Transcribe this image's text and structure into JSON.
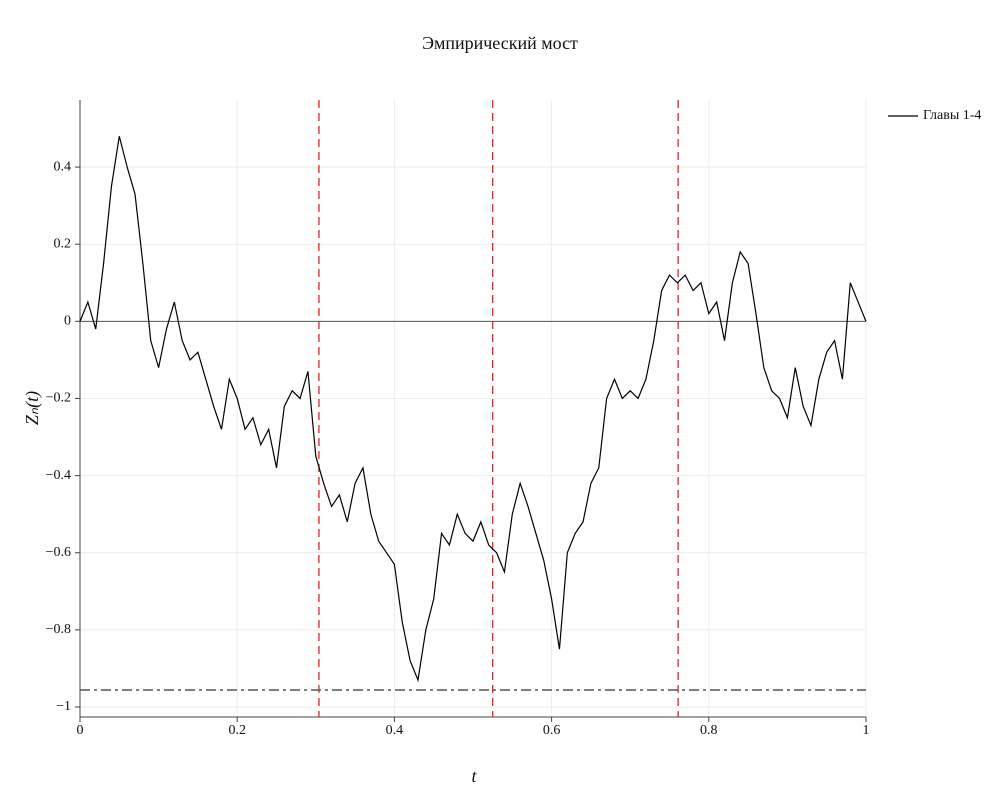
{
  "chart_data": {
    "type": "line",
    "title": "Эмпирический мост",
    "x_label": "t",
    "y_label": "Zₙ(t)",
    "x": [
      0,
      0.01,
      0.02,
      0.03,
      0.04,
      0.05,
      0.06,
      0.07,
      0.08,
      0.09,
      0.1,
      0.11,
      0.12,
      0.13,
      0.14,
      0.15,
      0.16,
      0.17,
      0.18,
      0.19,
      0.2,
      0.21,
      0.22,
      0.23,
      0.24,
      0.25,
      0.26,
      0.27,
      0.28,
      0.29,
      0.3,
      0.31,
      0.32,
      0.33,
      0.34,
      0.35,
      0.36,
      0.37,
      0.38,
      0.39,
      0.4,
      0.41,
      0.42,
      0.43,
      0.44,
      0.45,
      0.46,
      0.47,
      0.48,
      0.49,
      0.5,
      0.51,
      0.52,
      0.53,
      0.54,
      0.55,
      0.56,
      0.57,
      0.58,
      0.59,
      0.6,
      0.61,
      0.62,
      0.63,
      0.64,
      0.65,
      0.66,
      0.67,
      0.68,
      0.69,
      0.7,
      0.71,
      0.72,
      0.73,
      0.74,
      0.75,
      0.76,
      0.77,
      0.78,
      0.79,
      0.8,
      0.81,
      0.82,
      0.83,
      0.84,
      0.85,
      0.86,
      0.87,
      0.88,
      0.89,
      0.9,
      0.91,
      0.92,
      0.93,
      0.94,
      0.95,
      0.96,
      0.97,
      0.98,
      0.99,
      1
    ],
    "series": [
      {
        "name": "Главы 1-4",
        "color": "#000000",
        "values": [
          0,
          0.05,
          -0.02,
          0.15,
          0.35,
          0.48,
          0.4,
          0.33,
          0.15,
          -0.05,
          -0.12,
          -0.02,
          0.05,
          -0.05,
          -0.1,
          -0.08,
          -0.15,
          -0.22,
          -0.28,
          -0.15,
          -0.2,
          -0.28,
          -0.25,
          -0.32,
          -0.28,
          -0.38,
          -0.22,
          -0.18,
          -0.2,
          -0.13,
          -0.35,
          -0.42,
          -0.48,
          -0.45,
          -0.52,
          -0.42,
          -0.38,
          -0.5,
          -0.57,
          -0.6,
          -0.63,
          -0.78,
          -0.88,
          -0.93,
          -0.8,
          -0.72,
          -0.55,
          -0.58,
          -0.5,
          -0.55,
          -0.57,
          -0.52,
          -0.58,
          -0.6,
          -0.65,
          -0.5,
          -0.42,
          -0.48,
          -0.55,
          -0.62,
          -0.72,
          -0.85,
          -0.6,
          -0.55,
          -0.52,
          -0.42,
          -0.38,
          -0.2,
          -0.15,
          -0.2,
          -0.18,
          -0.2,
          -0.15,
          -0.05,
          0.08,
          0.12,
          0.1,
          0.12,
          0.08,
          0.1,
          0.02,
          0.05,
          -0.05,
          0.1,
          0.18,
          0.15,
          0.02,
          -0.12,
          -0.18,
          -0.2,
          -0.25,
          -0.12,
          -0.22,
          -0.27,
          -0.15,
          -0.08,
          -0.05,
          -0.15,
          0.1,
          0.05,
          0
        ]
      }
    ],
    "xlim": [
      0,
      1
    ],
    "ylim": [
      -1.026,
      0.574
    ],
    "xticks": [
      0,
      0.2,
      0.4,
      0.6,
      0.8,
      1
    ],
    "yticks": [
      {
        "value": -1,
        "label": "−1"
      },
      {
        "value": -0.8,
        "label": "−0.8"
      },
      {
        "value": -0.6,
        "label": "−0.6"
      },
      {
        "value": -0.4,
        "label": "−0.4"
      },
      {
        "value": -0.2,
        "label": "−0.2"
      },
      0,
      0.2,
      0.4
    ],
    "grid": true,
    "zeroline": true,
    "vlines": [
      0.304,
      0.525,
      0.761
    ],
    "vline_color": "#e8202a",
    "hline": -0.956,
    "hline_color": "#555555",
    "legend": "top-right"
  }
}
